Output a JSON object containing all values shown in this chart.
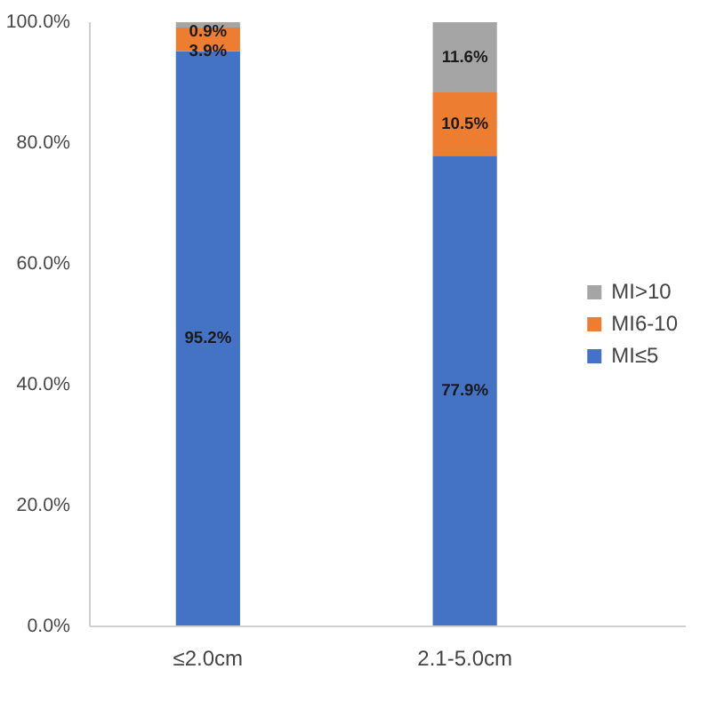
{
  "chart_data": {
    "type": "bar",
    "stacked": true,
    "categories": [
      "≤2.0cm",
      "2.1-5.0cm"
    ],
    "series": [
      {
        "name": "MI≤5",
        "color": "#4472c4",
        "values": [
          95.2,
          77.9
        ],
        "value_labels": [
          "95.2%",
          "77.9%"
        ]
      },
      {
        "name": "MI6-10",
        "color": "#ed7d31",
        "values": [
          3.9,
          10.5
        ],
        "value_labels": [
          "3.9%",
          "10.5%"
        ]
      },
      {
        "name": "MI>10",
        "color": "#a5a5a5",
        "values": [
          0.9,
          11.6
        ],
        "value_labels": [
          "0.9%",
          "11.6%"
        ]
      }
    ],
    "ylim": [
      0,
      100
    ],
    "yticks": [
      {
        "value": 0,
        "label": "0.0%"
      },
      {
        "value": 20,
        "label": "20.0%"
      },
      {
        "value": 40,
        "label": "40.0%"
      },
      {
        "value": 60,
        "label": "60.0%"
      },
      {
        "value": 80,
        "label": "80.0%"
      },
      {
        "value": 100,
        "label": "100.0%"
      }
    ],
    "grid": false,
    "legend": "right"
  }
}
